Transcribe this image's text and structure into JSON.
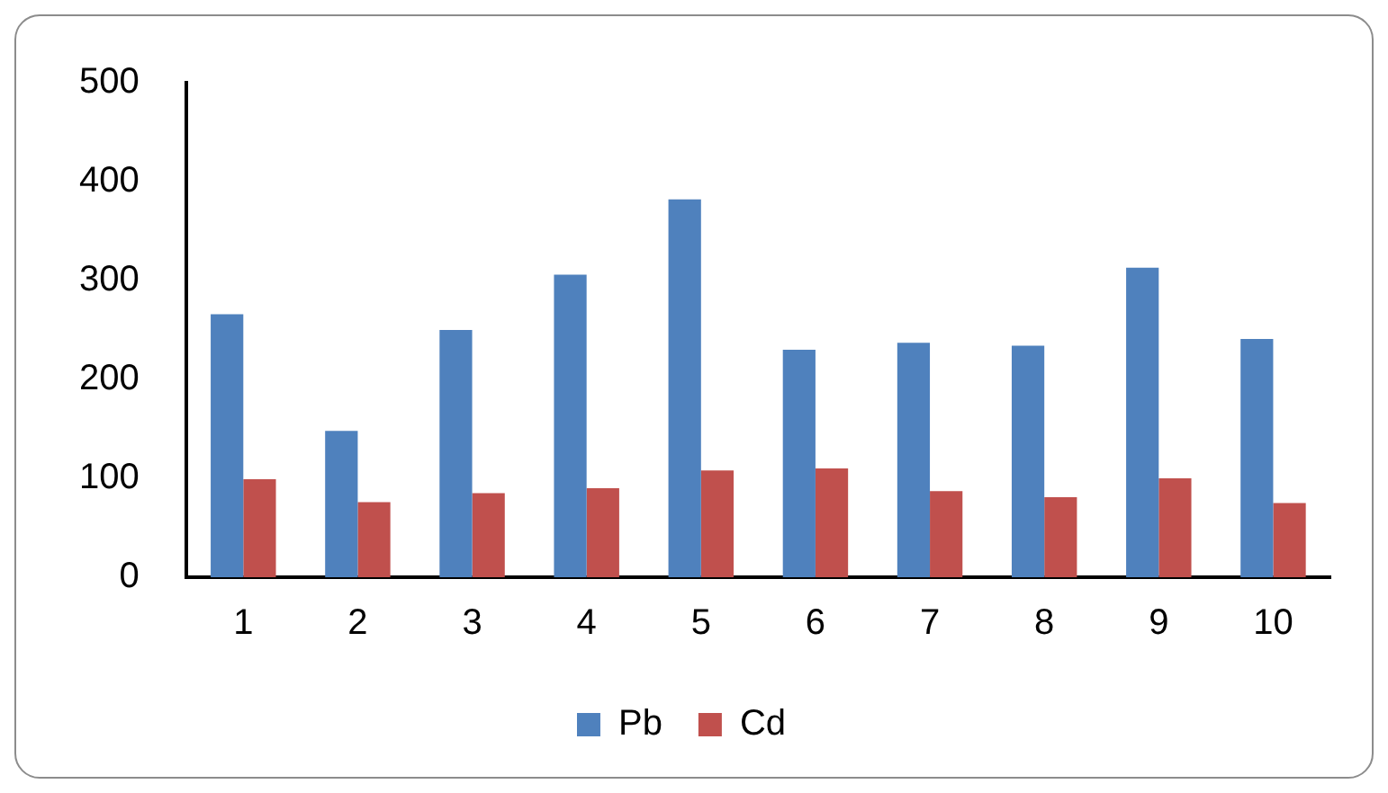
{
  "chart_data": {
    "type": "bar",
    "categories": [
      "1",
      "2",
      "3",
      "4",
      "5",
      "6",
      "7",
      "8",
      "9",
      "10"
    ],
    "series": [
      {
        "name": "Pb",
        "color": "#4f81bd",
        "values": [
          266,
          148,
          250,
          306,
          382,
          230,
          237,
          234,
          313,
          241
        ]
      },
      {
        "name": "Cd",
        "color": "#c0504d",
        "values": [
          99,
          76,
          85,
          90,
          108,
          110,
          87,
          81,
          100,
          75
        ]
      }
    ],
    "ylim": [
      0,
      500
    ],
    "yticks": [
      0,
      100,
      200,
      300,
      400,
      500
    ],
    "grid": false,
    "legend": "bottom"
  }
}
